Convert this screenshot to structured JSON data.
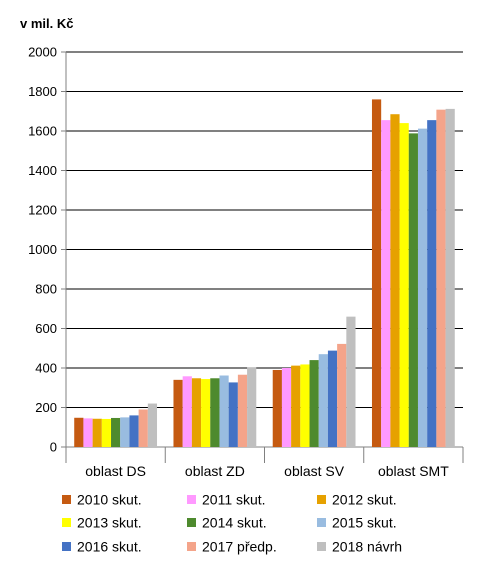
{
  "chart_data": {
    "type": "bar",
    "unit_label": "v mil. Kč",
    "categories": [
      "oblast DS",
      "oblast ZD",
      "oblast SV",
      "oblast SMT"
    ],
    "ylim": [
      0,
      2000
    ],
    "yticks": [
      0,
      200,
      400,
      600,
      800,
      1000,
      1200,
      1400,
      1600,
      1800,
      2000
    ],
    "grid": true,
    "legend_position": "bottom",
    "series": [
      {
        "name": "2010 skut.",
        "color": "#C55A11",
        "values": [
          148,
          340,
          390,
          1760
        ]
      },
      {
        "name": "2011 skut.",
        "color": "#FF99FF",
        "values": [
          145,
          358,
          400,
          1655
        ]
      },
      {
        "name": "2012 skut.",
        "color": "#E6A100",
        "values": [
          143,
          348,
          412,
          1685
        ]
      },
      {
        "name": "2013 skut.",
        "color": "#FFFF00",
        "values": [
          142,
          344,
          418,
          1640
        ]
      },
      {
        "name": "2014 skut.",
        "color": "#4E8A2E",
        "values": [
          147,
          348,
          440,
          1588
        ]
      },
      {
        "name": "2015 skut.",
        "color": "#99BCE0",
        "values": [
          150,
          362,
          470,
          1612
        ]
      },
      {
        "name": "2016 skut.",
        "color": "#4472C4",
        "values": [
          160,
          327,
          488,
          1655
        ]
      },
      {
        "name": "2017 předp.",
        "color": "#F4A48A",
        "values": [
          190,
          366,
          522,
          1708
        ]
      },
      {
        "name": "2018 návrh",
        "color": "#BFBFBF",
        "values": [
          220,
          402,
          660,
          1712
        ]
      }
    ]
  }
}
